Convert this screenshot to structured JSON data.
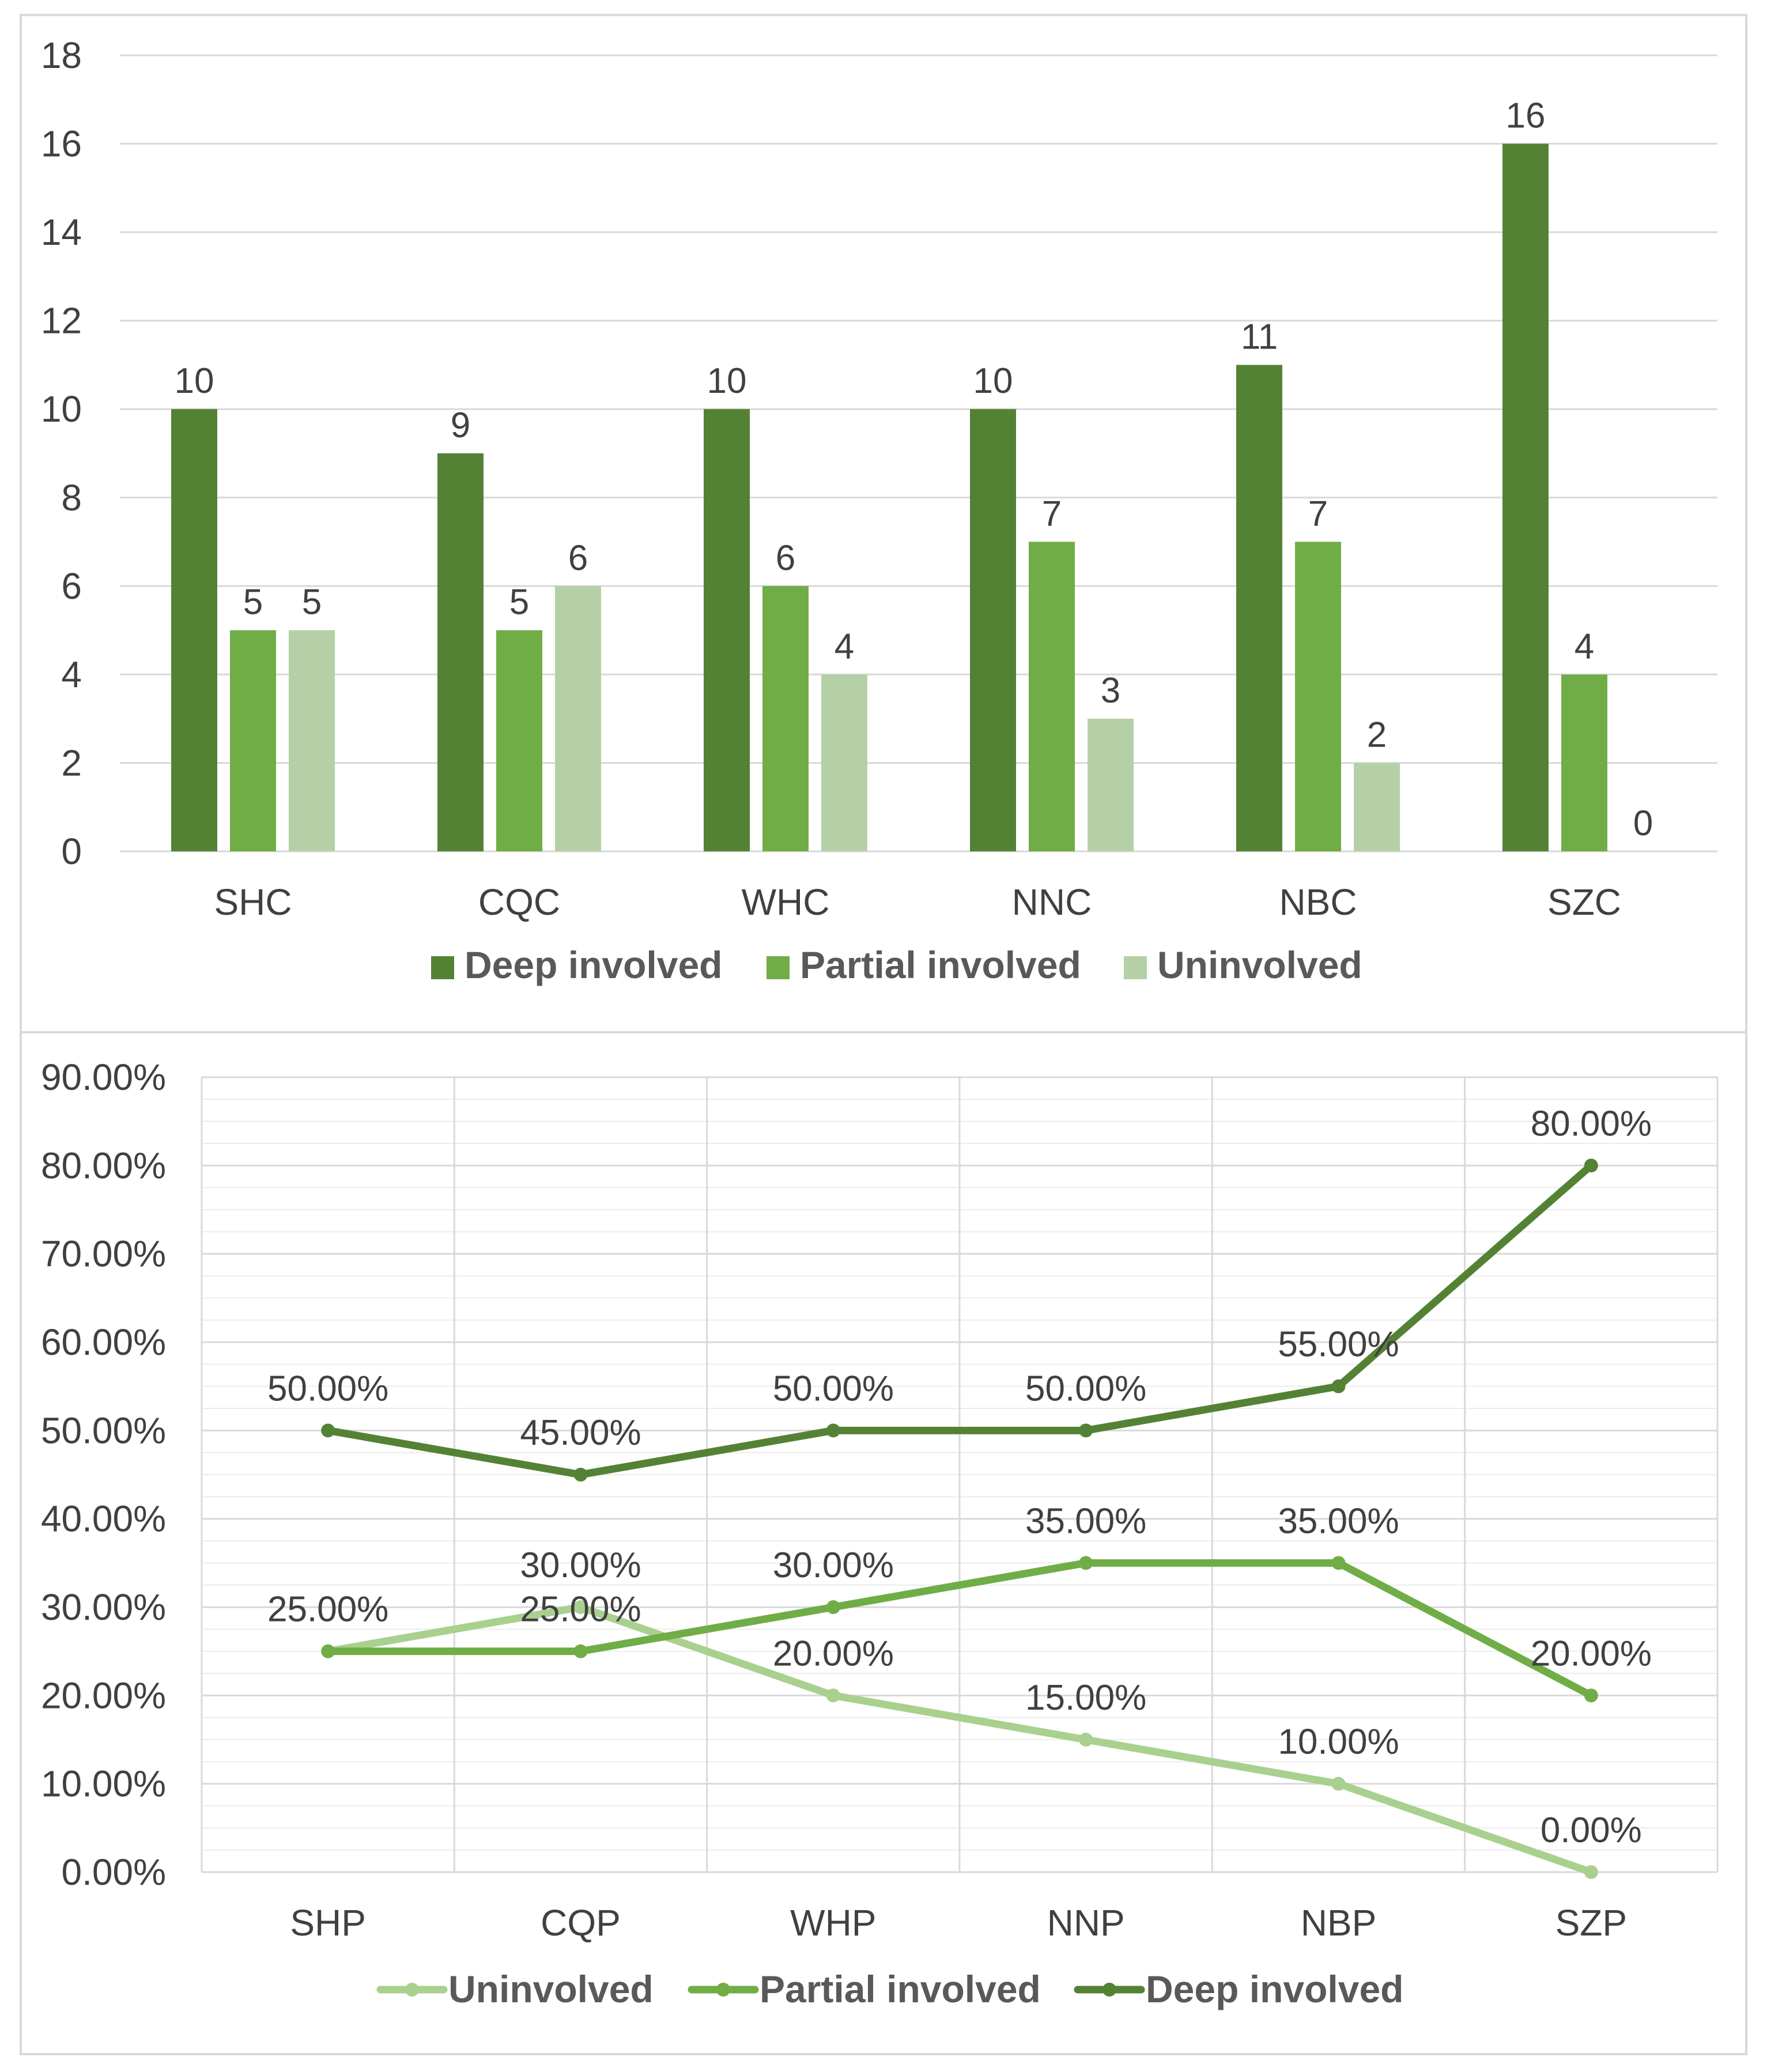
{
  "chart_data": [
    {
      "type": "bar",
      "title": "",
      "xlabel": "",
      "ylabel": "",
      "ylim": [
        0,
        18
      ],
      "yticks": [
        "0",
        "2",
        "4",
        "6",
        "8",
        "10",
        "12",
        "14",
        "16",
        "18"
      ],
      "categories": [
        "SHC",
        "CQC",
        "WHC",
        "NNC",
        "NBC",
        "SZC"
      ],
      "series": [
        {
          "name": "Deep involved",
          "color": "#548235",
          "values": [
            10,
            9,
            10,
            10,
            11,
            16
          ]
        },
        {
          "name": "Partial involved",
          "color": "#70ad47",
          "values": [
            5,
            5,
            6,
            7,
            7,
            4
          ]
        },
        {
          "name": "Uninvolved",
          "color": "#b5d0a6",
          "values": [
            5,
            6,
            4,
            3,
            2,
            0
          ]
        }
      ],
      "data_labels": [
        [
          "10",
          "9",
          "10",
          "10",
          "11",
          "16"
        ],
        [
          "5",
          "5",
          "6",
          "7",
          "7",
          "4"
        ],
        [
          "5",
          "6",
          "4",
          "3",
          "2",
          "0"
        ]
      ],
      "grid": true,
      "legend": "bottom"
    },
    {
      "type": "line",
      "title": "",
      "xlabel": "",
      "ylabel": "",
      "ylim": [
        0,
        90
      ],
      "yticks": [
        "0.00%",
        "10.00%",
        "20.00%",
        "30.00%",
        "40.00%",
        "50.00%",
        "60.00%",
        "70.00%",
        "80.00%",
        "90.00%"
      ],
      "categories": [
        "SHP",
        "CQP",
        "WHP",
        "NNP",
        "NBP",
        "SZP"
      ],
      "series": [
        {
          "name": "Uninvolved",
          "color": "#a9d08e",
          "values": [
            25,
            30,
            20,
            15,
            10,
            0
          ]
        },
        {
          "name": "Partial involved",
          "color": "#70ad47",
          "values": [
            25,
            25,
            30,
            35,
            35,
            20
          ]
        },
        {
          "name": "Deep involved",
          "color": "#548235",
          "values": [
            50,
            45,
            50,
            50,
            55,
            80
          ]
        }
      ],
      "data_labels": [
        [
          "25.00%",
          "30.00%",
          "20.00%",
          "15.00%",
          "10.00%",
          "0.00%"
        ],
        [
          "25.00%",
          "25.00%",
          "30.00%",
          "35.00%",
          "35.00%",
          "20.00%"
        ],
        [
          "50.00%",
          "45.00%",
          "50.00%",
          "50.00%",
          "55.00%",
          "80.00%"
        ]
      ],
      "grid": true,
      "legend": "bottom"
    }
  ]
}
